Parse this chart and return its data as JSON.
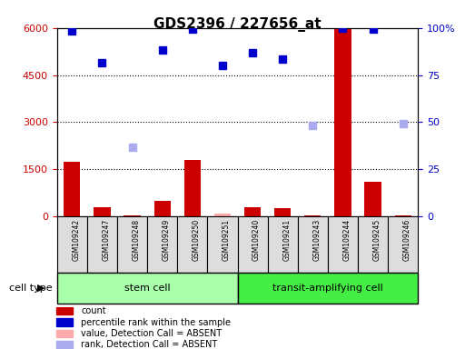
{
  "title": "GDS2396 / 227656_at",
  "samples": [
    "GSM109242",
    "GSM109247",
    "GSM109248",
    "GSM109249",
    "GSM109250",
    "GSM109251",
    "GSM109240",
    "GSM109241",
    "GSM109243",
    "GSM109244",
    "GSM109245",
    "GSM109246"
  ],
  "cell_types": [
    "stem cell",
    "stem cell",
    "stem cell",
    "stem cell",
    "stem cell",
    "stem cell",
    "transit-amplifying cell",
    "transit-amplifying cell",
    "transit-amplifying cell",
    "transit-amplifying cell",
    "transit-amplifying cell",
    "transit-amplifying cell"
  ],
  "bar_heights": [
    1750,
    300,
    30,
    500,
    1800,
    80,
    280,
    250,
    30,
    6000,
    1100,
    40
  ],
  "bar_absent": [
    false,
    false,
    false,
    false,
    false,
    true,
    false,
    false,
    false,
    false,
    false,
    false
  ],
  "blue_dots": [
    5900,
    4900,
    null,
    5300,
    5950,
    4800,
    5200,
    5000,
    null,
    5980,
    5950,
    null
  ],
  "blue_dots_absent": [
    false,
    false,
    true,
    false,
    false,
    false,
    false,
    false,
    true,
    false,
    false,
    true
  ],
  "blue_dot_values_absent": [
    null,
    null,
    2200,
    null,
    null,
    null,
    null,
    null,
    2900,
    null,
    null,
    2950
  ],
  "ylim_left": [
    0,
    6000
  ],
  "ylim_right": [
    0,
    100
  ],
  "yticks_left": [
    0,
    1500,
    3000,
    4500,
    6000
  ],
  "yticks_right": [
    0,
    25,
    50,
    75,
    100
  ],
  "bar_color_normal": "#cc0000",
  "bar_color_absent": "#ffaaaa",
  "dot_color_normal": "#0000cc",
  "dot_color_absent": "#aaaaee",
  "stem_cell_color": "#aaffaa",
  "transit_cell_color": "#44ee44",
  "cell_type_label": "cell type",
  "group1_label": "stem cell",
  "group2_label": "transit-amplifying cell",
  "legend_items": [
    {
      "label": "count",
      "color": "#cc0000"
    },
    {
      "label": "percentile rank within the sample",
      "color": "#0000cc"
    },
    {
      "label": "value, Detection Call = ABSENT",
      "color": "#ffaaaa"
    },
    {
      "label": "rank, Detection Call = ABSENT",
      "color": "#aaaaee"
    }
  ]
}
